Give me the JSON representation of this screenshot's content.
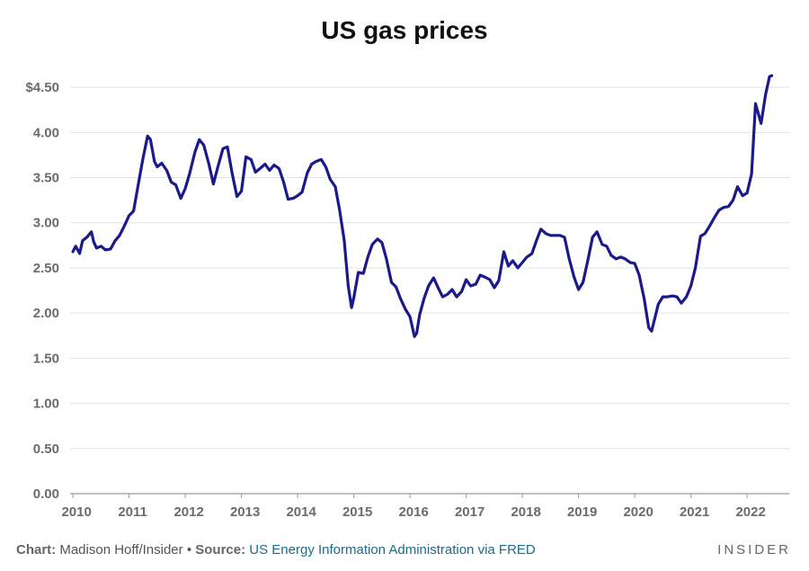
{
  "chart_data": {
    "type": "line",
    "title": "US gas prices",
    "xlabel": "",
    "ylabel": "",
    "xlim": [
      2009.95,
      2022.75
    ],
    "ylim": [
      0,
      4.75
    ],
    "y_ticks": [
      0,
      0.5,
      1.0,
      1.5,
      2.0,
      2.5,
      3.0,
      3.5,
      4.0,
      4.5
    ],
    "y_tick_labels": [
      "0.00",
      "0.50",
      "1.00",
      "1.50",
      "2.00",
      "2.50",
      "3.00",
      "3.50",
      "4.00",
      "$4.50"
    ],
    "x_ticks": [
      2010,
      2011,
      2012,
      2013,
      2014,
      2015,
      2016,
      2017,
      2018,
      2019,
      2020,
      2021,
      2022
    ],
    "x_tick_labels": [
      "2010",
      "2011",
      "2012",
      "2013",
      "2014",
      "2015",
      "2016",
      "2017",
      "2018",
      "2019",
      "2020",
      "2021",
      "2022"
    ],
    "grid": "horizontal",
    "line_color": "#1a1a8c",
    "series": [
      {
        "points": [
          [
            2010.0,
            2.68
          ],
          [
            2010.05,
            2.74
          ],
          [
            2010.12,
            2.66
          ],
          [
            2010.17,
            2.8
          ],
          [
            2010.25,
            2.84
          ],
          [
            2010.33,
            2.9
          ],
          [
            2010.37,
            2.79
          ],
          [
            2010.42,
            2.72
          ],
          [
            2010.5,
            2.74
          ],
          [
            2010.58,
            2.7
          ],
          [
            2010.67,
            2.71
          ],
          [
            2010.75,
            2.8
          ],
          [
            2010.83,
            2.86
          ],
          [
            2010.92,
            2.97
          ],
          [
            2011.0,
            3.08
          ],
          [
            2011.08,
            3.13
          ],
          [
            2011.17,
            3.45
          ],
          [
            2011.25,
            3.72
          ],
          [
            2011.33,
            3.96
          ],
          [
            2011.38,
            3.92
          ],
          [
            2011.45,
            3.68
          ],
          [
            2011.5,
            3.62
          ],
          [
            2011.58,
            3.66
          ],
          [
            2011.67,
            3.58
          ],
          [
            2011.75,
            3.45
          ],
          [
            2011.83,
            3.42
          ],
          [
            2011.92,
            3.27
          ],
          [
            2012.0,
            3.38
          ],
          [
            2012.08,
            3.55
          ],
          [
            2012.17,
            3.78
          ],
          [
            2012.25,
            3.92
          ],
          [
            2012.33,
            3.86
          ],
          [
            2012.42,
            3.65
          ],
          [
            2012.5,
            3.43
          ],
          [
            2012.58,
            3.62
          ],
          [
            2012.67,
            3.82
          ],
          [
            2012.75,
            3.84
          ],
          [
            2012.83,
            3.56
          ],
          [
            2012.92,
            3.29
          ],
          [
            2013.0,
            3.35
          ],
          [
            2013.08,
            3.73
          ],
          [
            2013.17,
            3.7
          ],
          [
            2013.25,
            3.56
          ],
          [
            2013.33,
            3.6
          ],
          [
            2013.42,
            3.65
          ],
          [
            2013.5,
            3.58
          ],
          [
            2013.58,
            3.64
          ],
          [
            2013.67,
            3.6
          ],
          [
            2013.75,
            3.45
          ],
          [
            2013.83,
            3.26
          ],
          [
            2013.92,
            3.27
          ],
          [
            2014.0,
            3.3
          ],
          [
            2014.08,
            3.34
          ],
          [
            2014.17,
            3.55
          ],
          [
            2014.25,
            3.65
          ],
          [
            2014.33,
            3.68
          ],
          [
            2014.42,
            3.7
          ],
          [
            2014.5,
            3.62
          ],
          [
            2014.58,
            3.48
          ],
          [
            2014.67,
            3.4
          ],
          [
            2014.75,
            3.13
          ],
          [
            2014.83,
            2.8
          ],
          [
            2014.9,
            2.3
          ],
          [
            2014.96,
            2.06
          ],
          [
            2015.0,
            2.17
          ],
          [
            2015.08,
            2.45
          ],
          [
            2015.17,
            2.44
          ],
          [
            2015.25,
            2.62
          ],
          [
            2015.33,
            2.76
          ],
          [
            2015.42,
            2.82
          ],
          [
            2015.5,
            2.78
          ],
          [
            2015.58,
            2.6
          ],
          [
            2015.67,
            2.34
          ],
          [
            2015.75,
            2.29
          ],
          [
            2015.83,
            2.16
          ],
          [
            2015.92,
            2.04
          ],
          [
            2016.0,
            1.96
          ],
          [
            2016.08,
            1.74
          ],
          [
            2016.12,
            1.78
          ],
          [
            2016.17,
            1.98
          ],
          [
            2016.25,
            2.16
          ],
          [
            2016.33,
            2.3
          ],
          [
            2016.42,
            2.39
          ],
          [
            2016.5,
            2.28
          ],
          [
            2016.58,
            2.18
          ],
          [
            2016.67,
            2.21
          ],
          [
            2016.75,
            2.26
          ],
          [
            2016.83,
            2.18
          ],
          [
            2016.92,
            2.24
          ],
          [
            2017.0,
            2.37
          ],
          [
            2017.08,
            2.3
          ],
          [
            2017.17,
            2.32
          ],
          [
            2017.25,
            2.42
          ],
          [
            2017.33,
            2.4
          ],
          [
            2017.42,
            2.37
          ],
          [
            2017.5,
            2.28
          ],
          [
            2017.58,
            2.36
          ],
          [
            2017.67,
            2.68
          ],
          [
            2017.75,
            2.52
          ],
          [
            2017.83,
            2.58
          ],
          [
            2017.92,
            2.5
          ],
          [
            2018.0,
            2.56
          ],
          [
            2018.08,
            2.62
          ],
          [
            2018.17,
            2.66
          ],
          [
            2018.25,
            2.8
          ],
          [
            2018.33,
            2.93
          ],
          [
            2018.42,
            2.88
          ],
          [
            2018.5,
            2.86
          ],
          [
            2018.58,
            2.86
          ],
          [
            2018.67,
            2.86
          ],
          [
            2018.75,
            2.84
          ],
          [
            2018.83,
            2.61
          ],
          [
            2018.92,
            2.4
          ],
          [
            2019.0,
            2.26
          ],
          [
            2019.08,
            2.34
          ],
          [
            2019.17,
            2.6
          ],
          [
            2019.25,
            2.84
          ],
          [
            2019.33,
            2.9
          ],
          [
            2019.42,
            2.76
          ],
          [
            2019.5,
            2.74
          ],
          [
            2019.58,
            2.64
          ],
          [
            2019.67,
            2.6
          ],
          [
            2019.75,
            2.62
          ],
          [
            2019.83,
            2.6
          ],
          [
            2019.92,
            2.56
          ],
          [
            2020.0,
            2.55
          ],
          [
            2020.08,
            2.42
          ],
          [
            2020.17,
            2.15
          ],
          [
            2020.25,
            1.84
          ],
          [
            2020.3,
            1.8
          ],
          [
            2020.42,
            2.1
          ],
          [
            2020.5,
            2.18
          ],
          [
            2020.58,
            2.18
          ],
          [
            2020.67,
            2.19
          ],
          [
            2020.75,
            2.18
          ],
          [
            2020.83,
            2.11
          ],
          [
            2020.92,
            2.18
          ],
          [
            2021.0,
            2.3
          ],
          [
            2021.08,
            2.5
          ],
          [
            2021.17,
            2.85
          ],
          [
            2021.25,
            2.88
          ],
          [
            2021.33,
            2.96
          ],
          [
            2021.42,
            3.06
          ],
          [
            2021.5,
            3.14
          ],
          [
            2021.58,
            3.17
          ],
          [
            2021.67,
            3.18
          ],
          [
            2021.75,
            3.25
          ],
          [
            2021.83,
            3.4
          ],
          [
            2021.92,
            3.3
          ],
          [
            2022.0,
            3.33
          ],
          [
            2022.08,
            3.54
          ],
          [
            2022.15,
            4.32
          ],
          [
            2022.25,
            4.1
          ],
          [
            2022.33,
            4.42
          ],
          [
            2022.4,
            4.62
          ],
          [
            2022.44,
            4.63
          ]
        ]
      }
    ]
  },
  "footer": {
    "chart_label": "Chart:",
    "chart_credit": "Madison Hoff/Insider",
    "separator": "•",
    "source_label": "Source:",
    "source_text": "US Energy Information Administration via FRED"
  },
  "brand": "INSIDER"
}
